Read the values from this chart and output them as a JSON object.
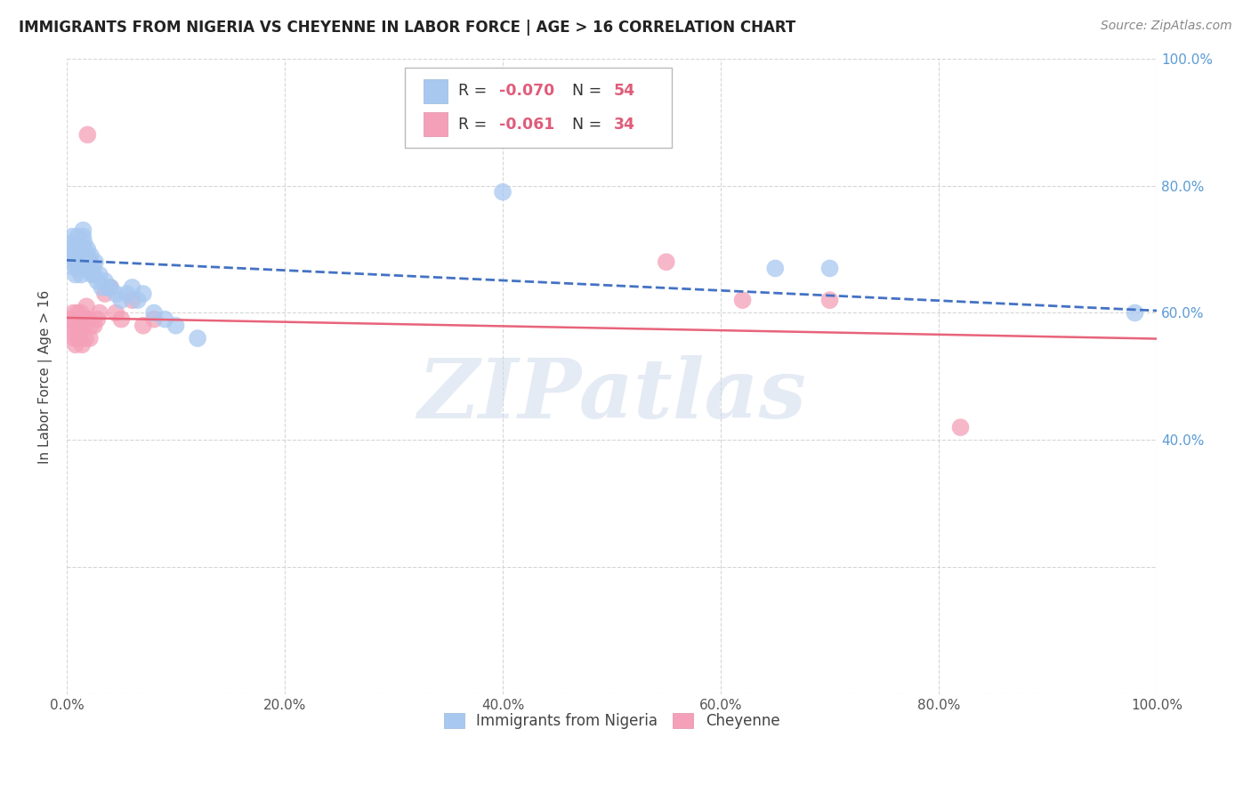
{
  "title": "IMMIGRANTS FROM NIGERIA VS CHEYENNE IN LABOR FORCE | AGE > 16 CORRELATION CHART",
  "source": "Source: ZipAtlas.com",
  "ylabel": "In Labor Force | Age > 16",
  "xlim": [
    0.0,
    1.0
  ],
  "ylim": [
    0.0,
    1.0
  ],
  "xticks": [
    0.0,
    0.2,
    0.4,
    0.6,
    0.8,
    1.0
  ],
  "yticks": [
    0.0,
    0.2,
    0.4,
    0.6,
    0.8,
    1.0
  ],
  "xticklabels": [
    "0.0%",
    "20.0%",
    "40.0%",
    "60.0%",
    "80.0%",
    "100.0%"
  ],
  "right_yticklabels": [
    "",
    "",
    "40.0%",
    "60.0%",
    "80.0%",
    "100.0%"
  ],
  "background_color": "#ffffff",
  "grid_color": "#cccccc",
  "watermark": "ZIPatlas",
  "blue_color": "#a8c8f0",
  "pink_color": "#f4a0b8",
  "blue_line_color": "#4472c4",
  "pink_line_color": "#e8637a",
  "right_tick_color": "#5b9bd5",
  "nigeria_scatter_x": [
    0.003,
    0.004,
    0.005,
    0.005,
    0.006,
    0.007,
    0.007,
    0.008,
    0.008,
    0.009,
    0.01,
    0.01,
    0.011,
    0.011,
    0.012,
    0.012,
    0.013,
    0.013,
    0.014,
    0.014,
    0.015,
    0.015,
    0.016,
    0.016,
    0.017,
    0.018,
    0.019,
    0.02,
    0.021,
    0.022,
    0.023,
    0.024,
    0.025,
    0.026,
    0.028,
    0.03,
    0.032,
    0.035,
    0.038,
    0.04,
    0.045,
    0.05,
    0.055,
    0.06,
    0.065,
    0.07,
    0.08,
    0.09,
    0.1,
    0.12,
    0.4,
    0.65,
    0.7,
    0.98
  ],
  "nigeria_scatter_y": [
    0.69,
    0.7,
    0.71,
    0.72,
    0.68,
    0.69,
    0.7,
    0.66,
    0.67,
    0.68,
    0.71,
    0.72,
    0.67,
    0.68,
    0.69,
    0.7,
    0.66,
    0.67,
    0.68,
    0.69,
    0.72,
    0.73,
    0.7,
    0.71,
    0.68,
    0.69,
    0.7,
    0.67,
    0.68,
    0.69,
    0.66,
    0.67,
    0.66,
    0.68,
    0.65,
    0.66,
    0.64,
    0.65,
    0.64,
    0.64,
    0.63,
    0.62,
    0.63,
    0.64,
    0.62,
    0.63,
    0.6,
    0.59,
    0.58,
    0.56,
    0.79,
    0.67,
    0.67,
    0.6
  ],
  "cheyenne_scatter_x": [
    0.003,
    0.004,
    0.005,
    0.006,
    0.007,
    0.008,
    0.009,
    0.01,
    0.011,
    0.012,
    0.013,
    0.014,
    0.015,
    0.016,
    0.017,
    0.018,
    0.019,
    0.02,
    0.021,
    0.022,
    0.025,
    0.028,
    0.03,
    0.035,
    0.04,
    0.045,
    0.05,
    0.06,
    0.07,
    0.08,
    0.55,
    0.62,
    0.7,
    0.82
  ],
  "cheyenne_scatter_y": [
    0.59,
    0.58,
    0.57,
    0.6,
    0.56,
    0.55,
    0.58,
    0.6,
    0.56,
    0.57,
    0.6,
    0.55,
    0.58,
    0.59,
    0.56,
    0.61,
    0.88,
    0.59,
    0.56,
    0.58,
    0.58,
    0.59,
    0.6,
    0.63,
    0.64,
    0.6,
    0.59,
    0.62,
    0.58,
    0.59,
    0.68,
    0.62,
    0.62,
    0.42
  ]
}
